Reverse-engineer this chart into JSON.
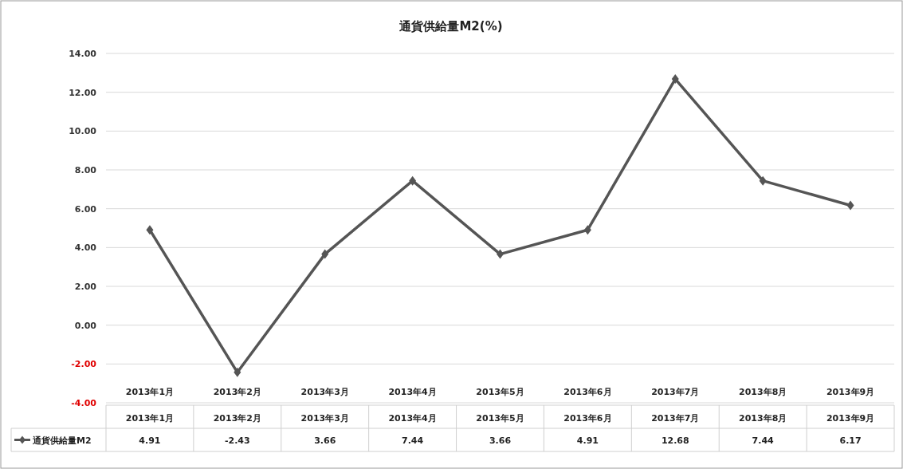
{
  "chart_data": {
    "type": "line",
    "title": "通貨供給量M2(%)",
    "categories": [
      "2013年1月",
      "2013年2月",
      "2013年3月",
      "2013年4月",
      "2013年5月",
      "2013年6月",
      "2013年7月",
      "2013年8月",
      "2013年9月"
    ],
    "series": [
      {
        "name": "通貨供給量M2",
        "color": "#555555",
        "values": [
          4.91,
          -2.43,
          3.66,
          7.44,
          3.66,
          4.91,
          12.68,
          7.44,
          6.17
        ]
      }
    ],
    "ylim": [
      -4,
      14
    ],
    "yticks": [
      {
        "value": -4,
        "label": "-4.00"
      },
      {
        "value": -2,
        "label": "-2.00"
      },
      {
        "value": 0,
        "label": "0.00"
      },
      {
        "value": 2,
        "label": "2.00"
      },
      {
        "value": 4,
        "label": "4.00"
      },
      {
        "value": 6,
        "label": "6.00"
      },
      {
        "value": 8,
        "label": "8.00"
      },
      {
        "value": 10,
        "label": "10.00"
      },
      {
        "value": 12,
        "label": "12.00"
      },
      {
        "value": 14,
        "label": "14.00"
      }
    ],
    "grid": "y",
    "marker": "diamond",
    "line_style": "solid",
    "data_labels": true,
    "legend": "bottom left"
  }
}
